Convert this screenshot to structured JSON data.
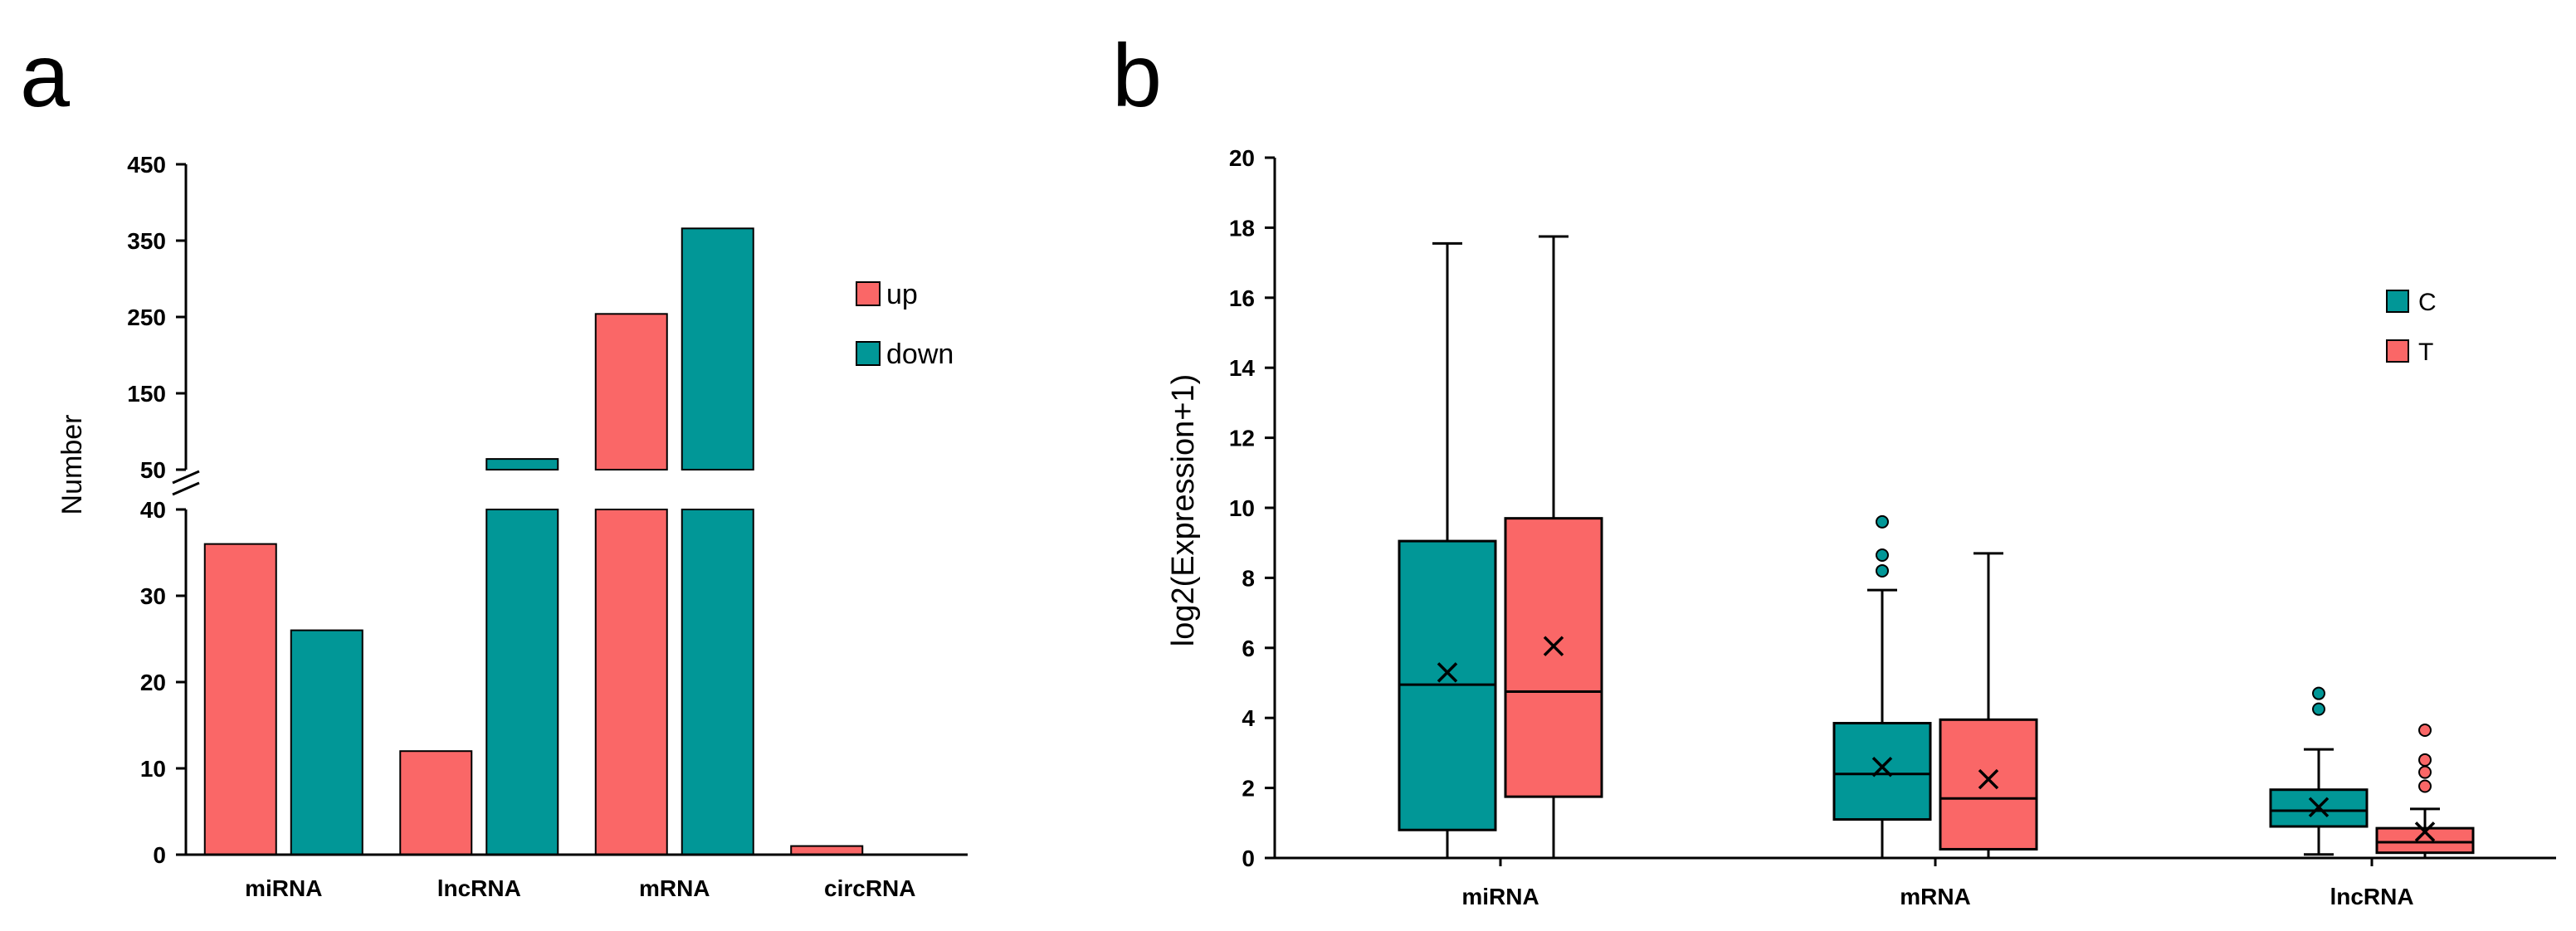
{
  "colors": {
    "up": "#fa6767",
    "down": "#019797",
    "C": "#019797",
    "T": "#fa6767",
    "axis": "#000000"
  },
  "chart_data": [
    {
      "panel": "a",
      "type": "bar",
      "ylabel": "Number",
      "categories": [
        "miRNA",
        "lncRNA",
        "mRNA",
        "circRNA"
      ],
      "series": [
        {
          "name": "up",
          "values": [
            36,
            12,
            254,
            1
          ]
        },
        {
          "name": "down",
          "values": [
            26,
            64,
            366,
            0
          ]
        }
      ],
      "y_axis_break": {
        "lower_range": [
          0,
          40
        ],
        "upper_range": [
          50,
          450
        ]
      },
      "lower_ticks": [
        "0",
        "10",
        "20",
        "30",
        "40"
      ],
      "upper_ticks": [
        "50",
        "150",
        "250",
        "350",
        "450"
      ],
      "legend": [
        "up",
        "down"
      ],
      "legend_position": "top-right"
    },
    {
      "panel": "b",
      "type": "box",
      "ylabel": "log2(Expression+1)",
      "categories": [
        "miRNA",
        "mRNA",
        "lncRNA"
      ],
      "ylim": [
        0,
        20
      ],
      "ticks": [
        "0",
        "2",
        "4",
        "6",
        "8",
        "10",
        "12",
        "14",
        "16",
        "18",
        "20"
      ],
      "legend": [
        "C",
        "T"
      ],
      "legend_position": "top-right",
      "groups": [
        {
          "category": "miRNA",
          "boxes": [
            {
              "series": "C",
              "min": 0,
              "q1": 0.8,
              "median": 4.95,
              "q3": 9.05,
              "max": 17.55,
              "mean": 5.3,
              "outliers": []
            },
            {
              "series": "T",
              "min": 0,
              "q1": 1.75,
              "median": 4.75,
              "q3": 9.7,
              "max": 17.75,
              "mean": 6.05,
              "outliers": []
            }
          ]
        },
        {
          "category": "mRNA",
          "boxes": [
            {
              "series": "C",
              "min": 0,
              "q1": 1.1,
              "median": 2.4,
              "q3": 3.85,
              "max": 7.65,
              "mean": 2.6,
              "outliers": [
                8.2,
                8.65,
                9.6
              ]
            },
            {
              "series": "T",
              "min": 0,
              "q1": 0.25,
              "median": 1.7,
              "q3": 3.95,
              "max": 8.7,
              "mean": 2.25,
              "outliers": []
            }
          ]
        },
        {
          "category": "lncRNA",
          "boxes": [
            {
              "series": "C",
              "min": 0.1,
              "q1": 0.9,
              "median": 1.35,
              "q3": 1.95,
              "max": 3.1,
              "mean": 1.45,
              "outliers": [
                4.25,
                4.7
              ]
            },
            {
              "series": "T",
              "min": 0,
              "q1": 0.15,
              "median": 0.45,
              "q3": 0.85,
              "max": 1.4,
              "mean": 0.75,
              "outliers": [
                2.05,
                2.45,
                2.8,
                3.65
              ]
            }
          ]
        }
      ]
    }
  ]
}
